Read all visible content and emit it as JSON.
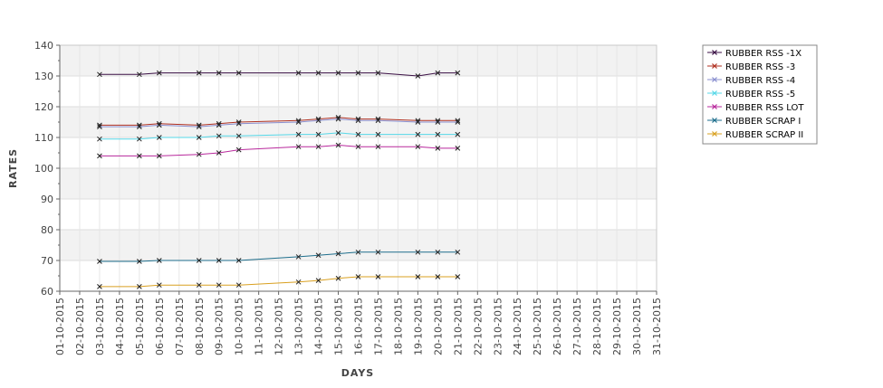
{
  "chart_data": {
    "type": "line",
    "title": "",
    "xlabel": "DAYS",
    "ylabel": "RATES",
    "ylim": [
      60,
      140
    ],
    "yticks": [
      60,
      70,
      80,
      90,
      100,
      110,
      120,
      130,
      140
    ],
    "grid": true,
    "legend_position": "right",
    "categories": [
      "01-10-2015",
      "02-10-2015",
      "03-10-2015",
      "04-10-2015",
      "05-10-2015",
      "06-10-2015",
      "07-10-2015",
      "08-10-2015",
      "09-10-2015",
      "10-10-2015",
      "11-10-2015",
      "12-10-2015",
      "13-10-2015",
      "14-10-2015",
      "15-10-2015",
      "16-10-2015",
      "17-10-2015",
      "18-10-2015",
      "19-10-2015",
      "20-10-2015",
      "21-10-2015",
      "22-10-2015",
      "23-10-2015",
      "24-10-2015",
      "25-10-2015",
      "26-10-2015",
      "27-10-2015",
      "28-10-2015",
      "29-10-2015",
      "30-10-2015",
      "31-10-2015"
    ],
    "series": [
      {
        "name": "RUBBER RSS -1X",
        "color": "#3a0f44",
        "x": [
          "03-10-2015",
          "05-10-2015",
          "06-10-2015",
          "08-10-2015",
          "09-10-2015",
          "10-10-2015",
          "13-10-2015",
          "14-10-2015",
          "15-10-2015",
          "16-10-2015",
          "17-10-2015",
          "19-10-2015",
          "20-10-2015",
          "21-10-2015"
        ],
        "values": [
          130.5,
          130.5,
          131,
          131,
          131,
          131,
          131,
          131,
          131,
          131,
          131,
          130,
          131,
          131
        ]
      },
      {
        "name": "RUBBER RSS -3",
        "color": "#b03020",
        "x": [
          "03-10-2015",
          "05-10-2015",
          "06-10-2015",
          "08-10-2015",
          "09-10-2015",
          "10-10-2015",
          "13-10-2015",
          "14-10-2015",
          "15-10-2015",
          "16-10-2015",
          "17-10-2015",
          "19-10-2015",
          "20-10-2015",
          "21-10-2015"
        ],
        "values": [
          114,
          114,
          114.5,
          114,
          114.5,
          115,
          115.5,
          116,
          116.5,
          116,
          116,
          115.5,
          115.5,
          115.5
        ]
      },
      {
        "name": "RUBBER RSS -4",
        "color": "#8a8fcf",
        "x": [
          "03-10-2015",
          "05-10-2015",
          "06-10-2015",
          "08-10-2015",
          "09-10-2015",
          "10-10-2015",
          "13-10-2015",
          "14-10-2015",
          "15-10-2015",
          "16-10-2015",
          "17-10-2015",
          "19-10-2015",
          "20-10-2015",
          "21-10-2015"
        ],
        "values": [
          113.5,
          113.5,
          114,
          113.5,
          114,
          114.5,
          115,
          115.5,
          116,
          115.5,
          115.5,
          115,
          115,
          115
        ]
      },
      {
        "name": "RUBBER RSS -5",
        "color": "#55d8e8",
        "x": [
          "03-10-2015",
          "05-10-2015",
          "06-10-2015",
          "08-10-2015",
          "09-10-2015",
          "10-10-2015",
          "13-10-2015",
          "14-10-2015",
          "15-10-2015",
          "16-10-2015",
          "17-10-2015",
          "19-10-2015",
          "20-10-2015",
          "21-10-2015"
        ],
        "values": [
          109.5,
          109.5,
          110,
          110,
          110.5,
          110.5,
          111,
          111,
          111.5,
          111,
          111,
          111,
          111,
          111
        ]
      },
      {
        "name": "RUBBER RSS LOT",
        "color": "#b8289c",
        "x": [
          "03-10-2015",
          "05-10-2015",
          "06-10-2015",
          "08-10-2015",
          "09-10-2015",
          "10-10-2015",
          "13-10-2015",
          "14-10-2015",
          "15-10-2015",
          "16-10-2015",
          "17-10-2015",
          "19-10-2015",
          "20-10-2015",
          "21-10-2015"
        ],
        "values": [
          104,
          104,
          104,
          104.5,
          105,
          106,
          107,
          107,
          107.5,
          107,
          107,
          107,
          106.5,
          106.5
        ]
      },
      {
        "name": "RUBBER SCRAP I",
        "color": "#1e6e8c",
        "x": [
          "03-10-2015",
          "05-10-2015",
          "06-10-2015",
          "08-10-2015",
          "09-10-2015",
          "10-10-2015",
          "13-10-2015",
          "14-10-2015",
          "15-10-2015",
          "16-10-2015",
          "17-10-2015",
          "19-10-2015",
          "20-10-2015",
          "21-10-2015"
        ],
        "values": [
          69.7,
          69.7,
          70,
          70,
          70,
          70,
          71.2,
          71.7,
          72.2,
          72.7,
          72.7,
          72.7,
          72.7,
          72.7
        ]
      },
      {
        "name": "RUBBER SCRAP II",
        "color": "#d9a020",
        "x": [
          "03-10-2015",
          "05-10-2015",
          "06-10-2015",
          "08-10-2015",
          "09-10-2015",
          "10-10-2015",
          "13-10-2015",
          "14-10-2015",
          "15-10-2015",
          "16-10-2015",
          "17-10-2015",
          "19-10-2015",
          "20-10-2015",
          "21-10-2015"
        ],
        "values": [
          61.5,
          61.5,
          62,
          62,
          62,
          62,
          63,
          63.5,
          64.2,
          64.7,
          64.7,
          64.7,
          64.7,
          64.7
        ]
      }
    ]
  }
}
